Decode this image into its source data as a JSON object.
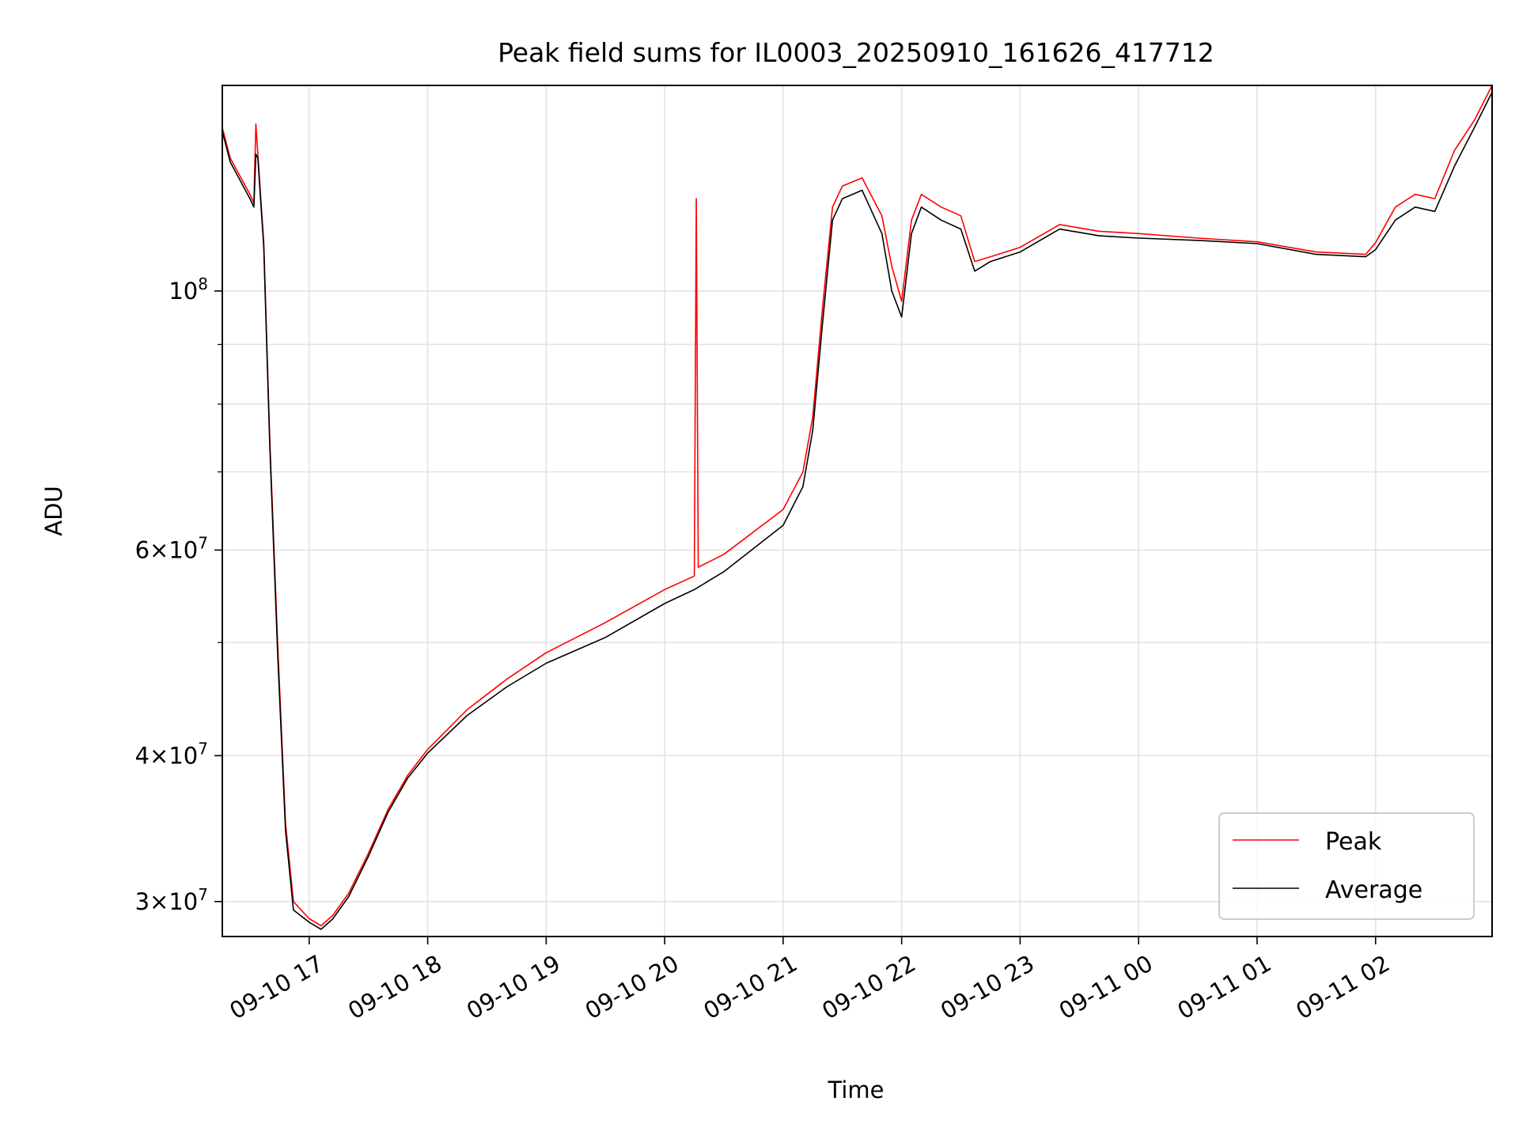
{
  "chart_data": {
    "type": "line",
    "title": "Peak field sums for IL0003_20250910_161626_417712",
    "xlabel": "Time",
    "ylabel": "ADU",
    "y_scale": "log",
    "xlim": [
      "2025-09-10 16:16",
      "2025-09-11 02:59"
    ],
    "ylim": [
      28000000,
      150000000
    ],
    "x_ticks": [
      "09-10 17",
      "09-10 18",
      "09-10 19",
      "09-10 20",
      "09-10 21",
      "09-10 22",
      "09-10 23",
      "09-11 00",
      "09-11 01",
      "09-11 02"
    ],
    "x_tick_times": [
      "2025-09-10 17:00",
      "2025-09-10 18:00",
      "2025-09-10 19:00",
      "2025-09-10 20:00",
      "2025-09-10 21:00",
      "2025-09-10 22:00",
      "2025-09-10 23:00",
      "2025-09-11 00:00",
      "2025-09-11 01:00",
      "2025-09-11 02:00"
    ],
    "y_major_ticks": [
      {
        "value": 30000000,
        "mant": "3",
        "exp": "7"
      },
      {
        "value": 40000000,
        "mant": "4",
        "exp": "7"
      },
      {
        "value": 60000000,
        "mant": "6",
        "exp": "7"
      },
      {
        "value": 100000000,
        "mant": "",
        "exp": "8"
      }
    ],
    "y_minor_gridlines": [
      50000000,
      70000000,
      80000000,
      90000000
    ],
    "grid": true,
    "legend_position": "lower right",
    "series": [
      {
        "name": "Peak",
        "color": "#ff0000",
        "x": [
          "2025-09-10 16:16",
          "2025-09-10 16:20",
          "2025-09-10 16:30",
          "2025-09-10 16:32",
          "2025-09-10 16:33",
          "2025-09-10 16:34",
          "2025-09-10 16:37",
          "2025-09-10 16:40",
          "2025-09-10 16:44",
          "2025-09-10 16:48",
          "2025-09-10 16:52",
          "2025-09-10 17:00",
          "2025-09-10 17:06",
          "2025-09-10 17:12",
          "2025-09-10 17:20",
          "2025-09-10 17:30",
          "2025-09-10 17:40",
          "2025-09-10 17:50",
          "2025-09-10 18:00",
          "2025-09-10 18:20",
          "2025-09-10 18:40",
          "2025-09-10 19:00",
          "2025-09-10 19:30",
          "2025-09-10 20:00",
          "2025-09-10 20:15",
          "2025-09-10 20:16",
          "2025-09-10 20:17",
          "2025-09-10 20:30",
          "2025-09-10 21:00",
          "2025-09-10 21:10",
          "2025-09-10 21:15",
          "2025-09-10 21:20",
          "2025-09-10 21:25",
          "2025-09-10 21:30",
          "2025-09-10 21:40",
          "2025-09-10 21:50",
          "2025-09-10 21:55",
          "2025-09-10 22:00",
          "2025-09-10 22:05",
          "2025-09-10 22:10",
          "2025-09-10 22:20",
          "2025-09-10 22:30",
          "2025-09-10 22:37",
          "2025-09-10 22:45",
          "2025-09-10 23:00",
          "2025-09-10 23:20",
          "2025-09-10 23:40",
          "2025-09-11 00:00",
          "2025-09-11 00:30",
          "2025-09-11 01:00",
          "2025-09-11 01:30",
          "2025-09-11 01:55",
          "2025-09-11 02:00",
          "2025-09-11 02:10",
          "2025-09-11 02:20",
          "2025-09-11 02:30",
          "2025-09-11 02:40",
          "2025-09-11 02:50",
          "2025-09-11 02:59"
        ],
        "y": [
          138000000,
          130000000,
          121000000,
          119000000,
          139000000,
          131000000,
          110000000,
          75000000,
          50000000,
          35000000,
          30000000,
          29000000,
          28600000,
          29200000,
          30500000,
          33000000,
          36000000,
          38500000,
          40500000,
          43800000,
          46500000,
          49000000,
          52000000,
          55500000,
          57000000,
          120000000,
          58000000,
          59500000,
          65000000,
          70000000,
          78000000,
          97000000,
          118000000,
          123000000,
          125000000,
          116000000,
          105000000,
          98000000,
          115000000,
          121000000,
          118000000,
          116000000,
          106000000,
          107000000,
          109000000,
          114000000,
          112500000,
          112000000,
          111000000,
          110200000,
          108000000,
          107500000,
          110000000,
          118000000,
          121000000,
          120000000,
          132000000,
          140000000,
          150000000
        ]
      },
      {
        "name": "Average",
        "color": "#000000",
        "x": [
          "2025-09-10 16:16",
          "2025-09-10 16:20",
          "2025-09-10 16:30",
          "2025-09-10 16:32",
          "2025-09-10 16:33",
          "2025-09-10 16:34",
          "2025-09-10 16:37",
          "2025-09-10 16:40",
          "2025-09-10 16:44",
          "2025-09-10 16:48",
          "2025-09-10 16:52",
          "2025-09-10 17:00",
          "2025-09-10 17:06",
          "2025-09-10 17:12",
          "2025-09-10 17:20",
          "2025-09-10 17:30",
          "2025-09-10 17:40",
          "2025-09-10 17:50",
          "2025-09-10 18:00",
          "2025-09-10 18:20",
          "2025-09-10 18:40",
          "2025-09-10 19:00",
          "2025-09-10 19:30",
          "2025-09-10 20:00",
          "2025-09-10 20:15",
          "2025-09-10 20:30",
          "2025-09-10 21:00",
          "2025-09-10 21:10",
          "2025-09-10 21:15",
          "2025-09-10 21:20",
          "2025-09-10 21:25",
          "2025-09-10 21:30",
          "2025-09-10 21:40",
          "2025-09-10 21:50",
          "2025-09-10 21:55",
          "2025-09-10 22:00",
          "2025-09-10 22:05",
          "2025-09-10 22:10",
          "2025-09-10 22:20",
          "2025-09-10 22:30",
          "2025-09-10 22:37",
          "2025-09-10 22:45",
          "2025-09-10 23:00",
          "2025-09-10 23:20",
          "2025-09-10 23:40",
          "2025-09-11 00:00",
          "2025-09-11 00:30",
          "2025-09-11 01:00",
          "2025-09-11 01:30",
          "2025-09-11 01:55",
          "2025-09-11 02:00",
          "2025-09-11 02:10",
          "2025-09-11 02:20",
          "2025-09-11 02:30",
          "2025-09-11 02:40",
          "2025-09-11 02:50",
          "2025-09-11 02:59"
        ],
        "y": [
          137000000,
          129000000,
          120000000,
          118000000,
          131000000,
          130000000,
          109000000,
          74000000,
          49000000,
          34500000,
          29500000,
          28800000,
          28400000,
          29000000,
          30300000,
          32800000,
          35800000,
          38300000,
          40200000,
          43300000,
          45800000,
          48000000,
          50500000,
          54000000,
          55500000,
          57500000,
          63000000,
          68000000,
          76000000,
          94000000,
          115000000,
          120000000,
          122000000,
          112000000,
          100000000,
          95000000,
          112000000,
          118000000,
          115000000,
          113000000,
          104000000,
          106000000,
          108000000,
          113000000,
          111500000,
          111000000,
          110500000,
          109800000,
          107500000,
          107000000,
          108500000,
          115000000,
          118000000,
          117000000,
          128000000,
          138000000,
          148000000
        ]
      }
    ]
  }
}
